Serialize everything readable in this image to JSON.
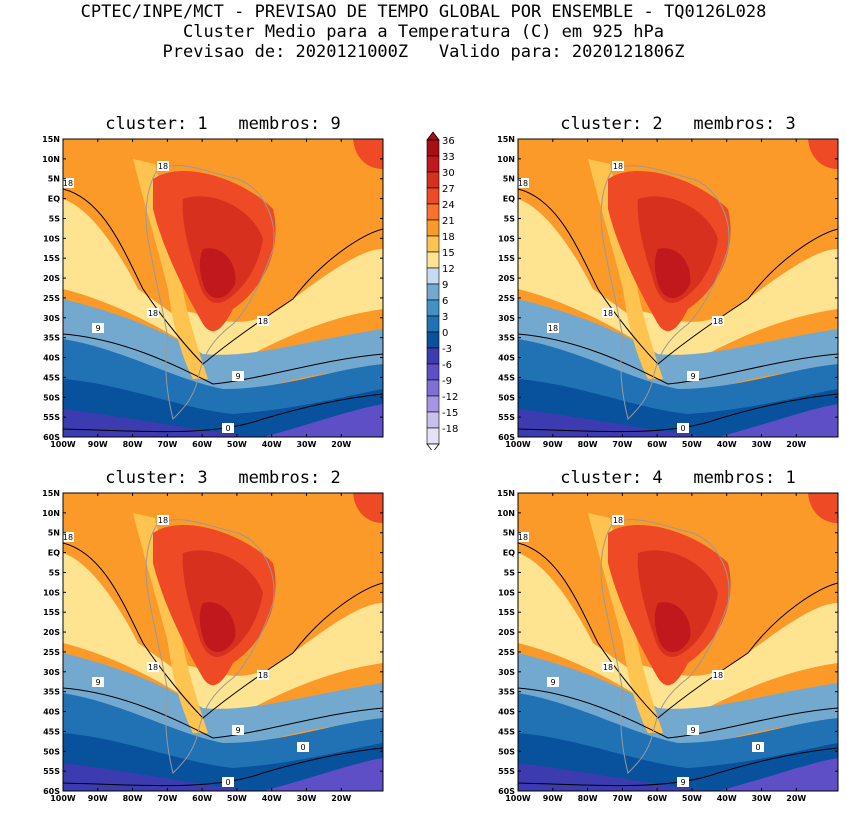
{
  "header": {
    "line1": "CPTEC/INPE/MCT - PREVISAO DE TEMPO GLOBAL POR ENSEMBLE - TQ0126L028",
    "line2": "Cluster Medio para a Temperatura (C) em 925 hPa",
    "line3": "Previsao de: 2020121000Z   Valido para: 2020121806Z"
  },
  "axes": {
    "lat_labels": [
      "15N",
      "10N",
      "5N",
      "EQ",
      "5S",
      "10S",
      "15S",
      "20S",
      "25S",
      "30S",
      "35S",
      "40S",
      "45S",
      "50S",
      "55S",
      "60S"
    ],
    "lon_labels": [
      "100W",
      "90W",
      "80W",
      "70W",
      "60W",
      "50W",
      "40W",
      "30W",
      "20W"
    ]
  },
  "colorbar": {
    "levels": [
      "36",
      "33",
      "30",
      "27",
      "24",
      "21",
      "18",
      "15",
      "12",
      "9",
      "6",
      "3",
      "0",
      "-3",
      "-6",
      "-9",
      "-12",
      "-15",
      "-18"
    ],
    "colors": [
      "#a50f15",
      "#c0181d",
      "#d7301f",
      "#ee4a25",
      "#f9722b",
      "#fb9a29",
      "#fec44f",
      "#fee391",
      "#c6dbef",
      "#74a9cf",
      "#4292c6",
      "#2171b5",
      "#08519c",
      "#3d3bb0",
      "#5e4fc7",
      "#7f6fd6",
      "#a595e3",
      "#c9c0ef",
      "#e6e1f6"
    ]
  },
  "panels": [
    {
      "title": "cluster: 1   membros: 9",
      "contour_labels": [
        "18",
        "18",
        "18",
        "18",
        "9",
        "9",
        "0"
      ]
    },
    {
      "title": "cluster: 2   membros: 3",
      "contour_labels": [
        "18",
        "18",
        "18",
        "18",
        "18",
        "9",
        "0"
      ]
    },
    {
      "title": "cluster: 3   membros: 2",
      "contour_labels": [
        "18",
        "18",
        "18",
        "18",
        "9",
        "9",
        "0",
        "0"
      ]
    },
    {
      "title": "cluster: 4   membros: 1",
      "contour_labels": [
        "18",
        "18",
        "18",
        "18",
        "9",
        "9",
        "9",
        "0"
      ]
    }
  ]
}
